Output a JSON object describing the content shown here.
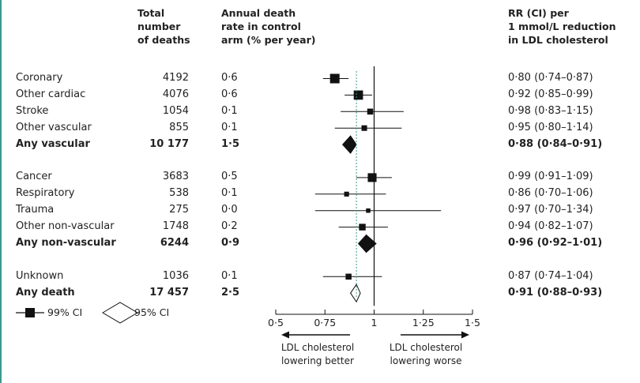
{
  "columns": {
    "total": [
      "Total",
      "number",
      "of deaths"
    ],
    "rate": [
      "Annual death",
      "rate in control",
      "arm (% per year)"
    ],
    "rr": [
      "RR (CI) per",
      "1 mmol/L reduction",
      "in LDL cholesterol"
    ]
  },
  "legend": {
    "box": "99% CI",
    "diamond": "95% CI"
  },
  "arrows": {
    "left": [
      "LDL cholesterol",
      "lowering better"
    ],
    "right": [
      "LDL cholesterol",
      "lowering worse"
    ]
  },
  "colors": {
    "ink": "#111111",
    "dashed": "#3a9a8e",
    "border": "#3a9a8e"
  },
  "chart_data": {
    "type": "forest",
    "x_ticks": [
      "0·5",
      "0·75",
      "1",
      "1·25",
      "1·5"
    ],
    "xlim": [
      0.5,
      1.5
    ],
    "reference_line": 1.0,
    "dashed_line": 0.91,
    "rows": [
      {
        "label": "Coronary",
        "total": "4192",
        "rate": "0·6",
        "ci_text": "0·80 (0·74–0·87)",
        "rr": 0.8,
        "lo99": 0.74,
        "hi99": 0.87,
        "marker": "box",
        "size": 1.0,
        "bold": false
      },
      {
        "label": "Other cardiac",
        "total": "4076",
        "rate": "0·6",
        "ci_text": "0·92 (0·85–0·99)",
        "rr": 0.92,
        "lo99": 0.85,
        "hi99": 0.99,
        "marker": "box",
        "size": 0.97,
        "bold": false
      },
      {
        "label": "Stroke",
        "total": "1054",
        "rate": "0·1",
        "ci_text": "0·98 (0·83–1·15)",
        "rr": 0.98,
        "lo99": 0.83,
        "hi99": 1.15,
        "marker": "box",
        "size": 0.5,
        "bold": false
      },
      {
        "label": "Other vascular",
        "total": "855",
        "rate": "0·1",
        "ci_text": "0·95 (0·80–1·14)",
        "rr": 0.95,
        "lo99": 0.8,
        "hi99": 1.14,
        "marker": "box",
        "size": 0.45,
        "bold": false
      },
      {
        "label": "Any vascular",
        "total": "10 177",
        "rate": "1·5",
        "ci_text": "0·88 (0·84–0·91)",
        "rr": 0.88,
        "lo95": 0.84,
        "hi95": 0.91,
        "marker": "diamond",
        "filled": true,
        "bold": true
      },
      {
        "spacer": true
      },
      {
        "label": "Cancer",
        "total": "3683",
        "rate": "0·5",
        "ci_text": "0·99 (0·91–1·09)",
        "rr": 0.99,
        "lo99": 0.91,
        "hi99": 1.09,
        "marker": "box",
        "size": 0.9,
        "bold": false
      },
      {
        "label": "Respiratory",
        "total": "538",
        "rate": "0·1",
        "ci_text": "0·86 (0·70–1·06)",
        "rr": 0.86,
        "lo99": 0.7,
        "hi99": 1.06,
        "marker": "box",
        "size": 0.35,
        "bold": false
      },
      {
        "label": "Trauma",
        "total": "275",
        "rate": "0·0",
        "ci_text": "0·97 (0·70–1·34)",
        "rr": 0.97,
        "lo99": 0.7,
        "hi99": 1.34,
        "marker": "box",
        "size": 0.28,
        "bold": false
      },
      {
        "label": "Other non-vascular",
        "total": "1748",
        "rate": "0·2",
        "ci_text": "0·94 (0·82–1·07)",
        "rr": 0.94,
        "lo99": 0.82,
        "hi99": 1.07,
        "marker": "box",
        "size": 0.6,
        "bold": false
      },
      {
        "label": "Any non-vascular",
        "total": "6244",
        "rate": "0·9",
        "ci_text": "0·96 (0·92–1·01)",
        "rr": 0.96,
        "lo95": 0.92,
        "hi95": 1.01,
        "marker": "diamond",
        "filled": true,
        "bold": true
      },
      {
        "spacer": true
      },
      {
        "label": "Unknown",
        "total": "1036",
        "rate": "0·1",
        "ci_text": "0·87 (0·74–1·04)",
        "rr": 0.87,
        "lo99": 0.74,
        "hi99": 1.04,
        "marker": "box",
        "size": 0.5,
        "bold": false
      },
      {
        "label": "Any death",
        "total": "17 457",
        "rate": "2·5",
        "ci_text": "0·91 (0·88–0·93)",
        "rr": 0.91,
        "lo95": 0.88,
        "hi95": 0.93,
        "marker": "diamond",
        "filled": false,
        "bold": true
      }
    ]
  }
}
